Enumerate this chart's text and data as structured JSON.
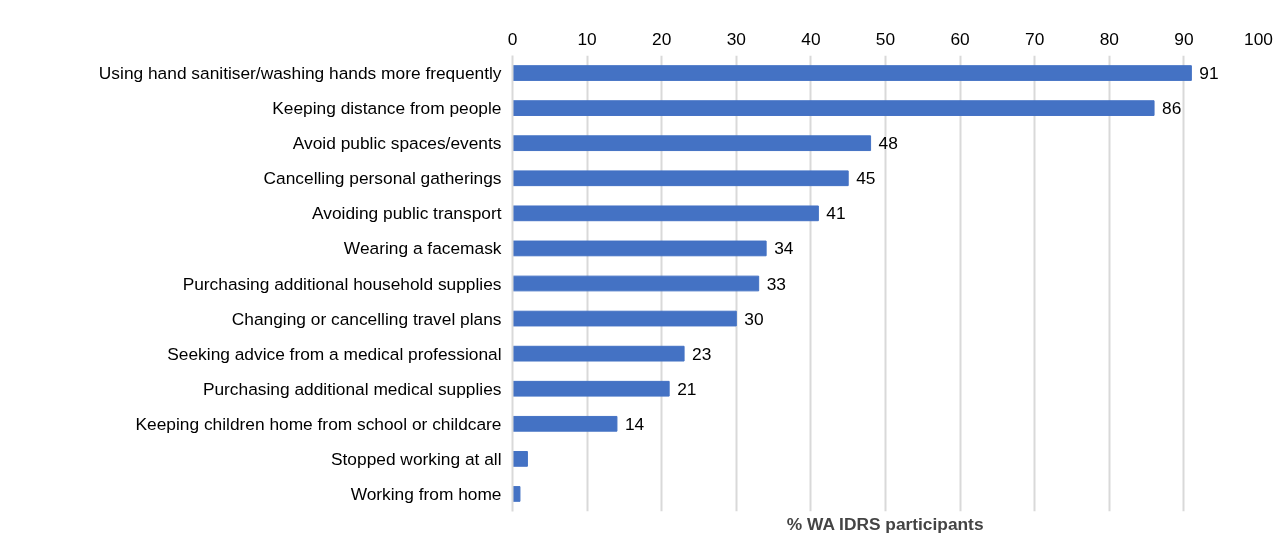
{
  "chart_data": {
    "type": "bar",
    "orientation": "horizontal",
    "xlabel": "% WA IDRS participants",
    "categories": [
      "Using hand sanitiser/washing hands more frequently",
      "Keeping distance from people",
      "Avoid public spaces/events",
      "Cancelling personal gatherings",
      "Avoiding public transport",
      "Wearing a facemask",
      "Purchasing additional household supplies",
      "Changing or cancelling travel plans",
      "Seeking advice from a medical professional",
      "Purchasing additional medical supplies",
      "Keeping children home from school or childcare",
      "Stopped working at all",
      "Working from home"
    ],
    "values": [
      91,
      86,
      48,
      45,
      41,
      34,
      33,
      30,
      23,
      21,
      14,
      2,
      1
    ],
    "value_labels": [
      "91",
      "86",
      "48",
      "45",
      "41",
      "34",
      "33",
      "30",
      "23",
      "21",
      "14",
      null,
      null
    ],
    "color": "#4472c4",
    "xlim": [
      0,
      100
    ],
    "xticks": [
      0,
      10,
      20,
      30,
      40,
      50,
      60,
      70,
      80,
      90,
      100
    ],
    "grid": "x"
  }
}
